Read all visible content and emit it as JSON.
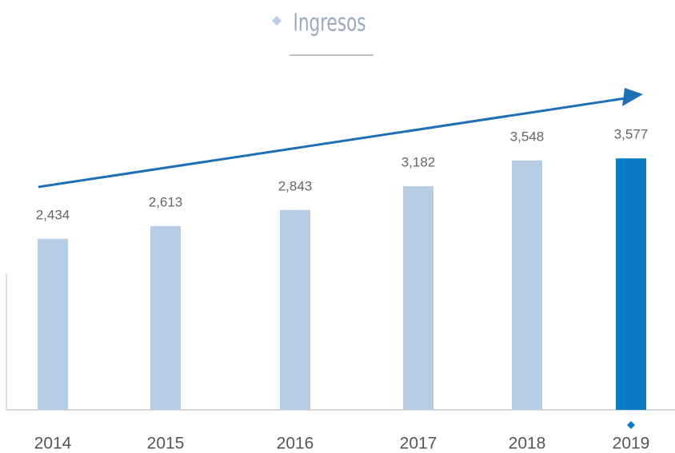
{
  "chart_data": {
    "type": "bar",
    "title": "Ingresos",
    "categories": [
      "2014",
      "2015",
      "2016",
      "2017",
      "2018",
      "2019"
    ],
    "values": [
      2434,
      2613,
      2843,
      3182,
      3548,
      3577
    ],
    "value_labels": [
      "2,434",
      "2,613",
      "2,843",
      "3,182",
      "3,548",
      "3,577"
    ],
    "colors": [
      "#b8cce4",
      "#b8cce4",
      "#b8cce4",
      "#b8cce4",
      "#b8cce4",
      "#0a7bc6"
    ]
  }
}
